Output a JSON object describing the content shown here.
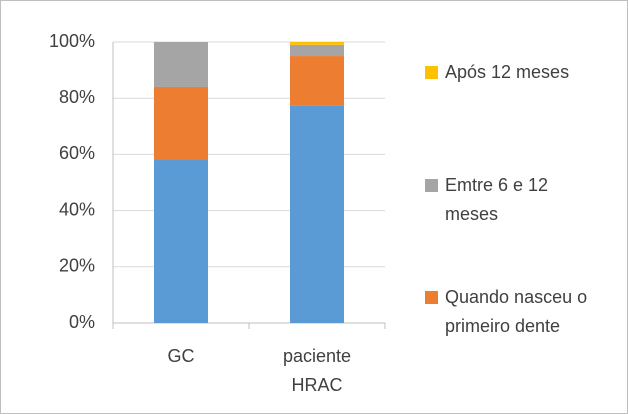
{
  "chart_data": {
    "type": "stacked_bar",
    "categories": [
      "GC",
      "paciente HRAC"
    ],
    "series": [
      {
        "color": "#5b9bd5",
        "values": [
          58,
          77.5
        ]
      },
      {
        "name": "Quando nasceu o primeiro dente",
        "color": "#ed7d31",
        "values": [
          26,
          17.5
        ]
      },
      {
        "name": "Emtre 6 e 12 meses",
        "color": "#a5a5a5",
        "values": [
          16,
          4
        ]
      },
      {
        "name": "Após 12 meses",
        "color": "#ffc000",
        "values": [
          0,
          1
        ]
      }
    ],
    "ylim": [
      0,
      100
    ],
    "yticks": [
      {
        "value": 0,
        "label": "0%"
      },
      {
        "value": 20,
        "label": "20%"
      },
      {
        "value": 40,
        "label": "40%"
      },
      {
        "value": 60,
        "label": "60%"
      },
      {
        "value": 80,
        "label": "80%"
      },
      {
        "value": 100,
        "label": "100%"
      }
    ],
    "grid": true,
    "legend": "right"
  }
}
